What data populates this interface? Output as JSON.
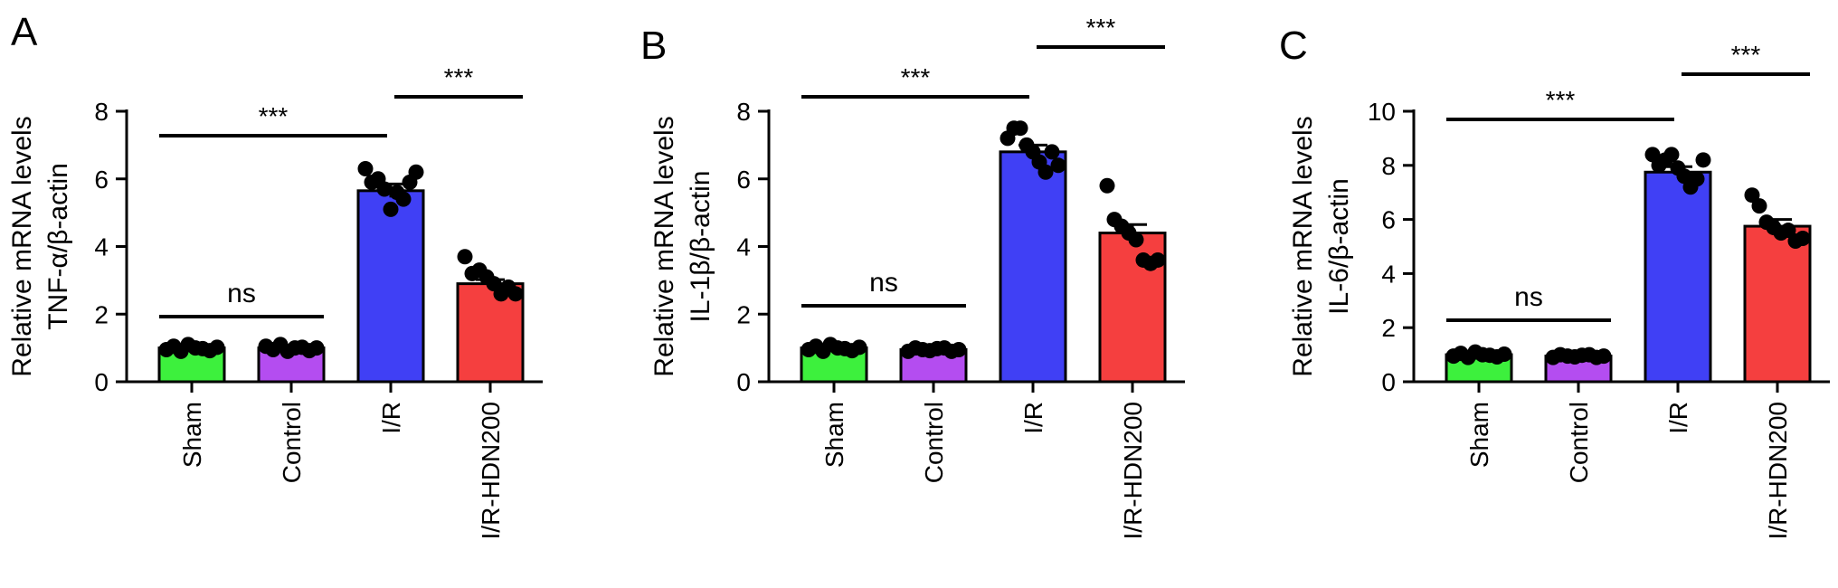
{
  "chart_data": [
    {
      "type": "bar",
      "panel_label": "A",
      "categories": [
        "Sham",
        "Control",
        "I/R",
        "I/R-HDN200"
      ],
      "values": [
        1.0,
        1.0,
        5.65,
        2.9
      ],
      "sem": [
        0.05,
        0.05,
        0.2,
        0.12
      ],
      "points": [
        [
          0.95,
          1.05,
          0.9,
          1.1,
          1.0,
          0.98,
          0.92,
          1.02
        ],
        [
          1.05,
          0.95,
          1.1,
          0.9,
          1.0,
          1.02,
          0.92,
          1.0
        ],
        [
          6.3,
          5.9,
          6.0,
          5.7,
          5.1,
          5.6,
          5.4,
          5.9,
          6.2
        ],
        [
          3.7,
          3.2,
          3.3,
          3.1,
          2.9,
          2.6,
          2.8,
          2.6
        ]
      ],
      "ylabel_lines": [
        "Relative mRNA levels",
        "TNF-α/β-actin"
      ],
      "ylim": [
        0,
        8
      ],
      "yticks": [
        "0",
        "2",
        "4",
        "6",
        "8"
      ],
      "colors": [
        "#3df03d",
        "#b44df0",
        "#4040f5",
        "#f53f3f"
      ],
      "significance": [
        {
          "from": 0,
          "to": 1,
          "label": "ns"
        },
        {
          "from": 0,
          "to": 2,
          "label": "***"
        },
        {
          "from": 2,
          "to": 3,
          "label": "***"
        }
      ]
    },
    {
      "type": "bar",
      "panel_label": "B",
      "categories": [
        "Sham",
        "Control",
        "I/R",
        "I/R-HDN200"
      ],
      "values": [
        1.0,
        0.95,
        6.8,
        4.4
      ],
      "sem": [
        0.05,
        0.04,
        0.2,
        0.25
      ],
      "points": [
        [
          0.95,
          1.05,
          0.9,
          1.1,
          1.0,
          0.98,
          0.92,
          1.02
        ],
        [
          0.9,
          1.0,
          0.95,
          0.92,
          0.98,
          1.0,
          0.9,
          0.95
        ],
        [
          7.2,
          7.5,
          7.5,
          7.0,
          6.8,
          6.5,
          6.2,
          6.8,
          6.4
        ],
        [
          5.8,
          4.8,
          4.6,
          4.4,
          4.2,
          3.6,
          3.5,
          3.6
        ]
      ],
      "ylabel_lines": [
        "Relative mRNA levels",
        "IL-1β/β-actin"
      ],
      "ylim": [
        0,
        8
      ],
      "yticks": [
        "0",
        "2",
        "4",
        "6",
        "8"
      ],
      "colors": [
        "#3df03d",
        "#b44df0",
        "#4040f5",
        "#f53f3f"
      ],
      "significance": [
        {
          "from": 0,
          "to": 1,
          "label": "ns"
        },
        {
          "from": 0,
          "to": 2,
          "label": "***"
        },
        {
          "from": 2,
          "to": 3,
          "label": "***"
        }
      ]
    },
    {
      "type": "bar",
      "panel_label": "C",
      "categories": [
        "Sham",
        "Control",
        "I/R",
        "I/R-HDN200"
      ],
      "values": [
        1.0,
        0.95,
        7.75,
        5.75
      ],
      "sem": [
        0.05,
        0.05,
        0.2,
        0.25
      ],
      "points": [
        [
          0.95,
          1.05,
          0.9,
          1.1,
          1.0,
          0.98,
          0.92,
          1.02
        ],
        [
          0.9,
          1.0,
          0.95,
          0.92,
          0.98,
          1.0,
          0.9,
          0.95
        ],
        [
          8.4,
          8.0,
          8.2,
          8.4,
          7.9,
          7.6,
          7.2,
          7.5,
          8.2
        ],
        [
          6.9,
          6.5,
          5.9,
          5.7,
          5.5,
          5.6,
          5.2,
          5.3
        ]
      ],
      "ylabel_lines": [
        "Relative mRNA levels",
        "IL-6/β-actin"
      ],
      "ylim": [
        0,
        10
      ],
      "yticks": [
        "0",
        "2",
        "4",
        "6",
        "8",
        "10"
      ],
      "colors": [
        "#3df03d",
        "#b44df0",
        "#4040f5",
        "#f53f3f"
      ],
      "significance": [
        {
          "from": 0,
          "to": 1,
          "label": "ns"
        },
        {
          "from": 0,
          "to": 2,
          "label": "***"
        },
        {
          "from": 2,
          "to": 3,
          "label": "***"
        }
      ]
    }
  ]
}
